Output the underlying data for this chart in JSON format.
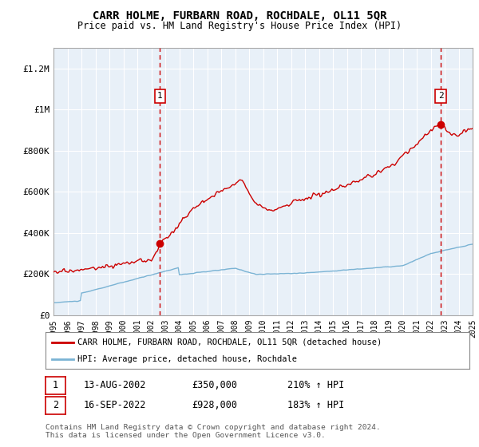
{
  "title": "CARR HOLME, FURBARN ROAD, ROCHDALE, OL11 5QR",
  "subtitle": "Price paid vs. HM Land Registry's House Price Index (HPI)",
  "background_color": "#e8f0f8",
  "plot_bg_color": "#e8f0f8",
  "ylim": [
    0,
    1300000
  ],
  "yticks": [
    0,
    200000,
    400000,
    600000,
    800000,
    1000000,
    1200000
  ],
  "ytick_labels": [
    "£0",
    "£200K",
    "£400K",
    "£600K",
    "£800K",
    "£1M",
    "£1.2M"
  ],
  "year_start": 1995,
  "year_end": 2025,
  "hpi_color": "#7ab3d4",
  "price_color": "#cc0000",
  "marker1_year": 2002.617,
  "marker1_price": 350000,
  "marker2_year": 2022.708,
  "marker2_price": 928000,
  "legend_label1": "CARR HOLME, FURBARN ROAD, ROCHDALE, OL11 5QR (detached house)",
  "legend_label2": "HPI: Average price, detached house, Rochdale",
  "table_row1": [
    "1",
    "13-AUG-2002",
    "£350,000",
    "210% ↑ HPI"
  ],
  "table_row2": [
    "2",
    "16-SEP-2022",
    "£928,000",
    "183% ↑ HPI"
  ],
  "footer": "Contains HM Land Registry data © Crown copyright and database right 2024.\nThis data is licensed under the Open Government Licence v3.0.",
  "grid_color": "#ffffff",
  "dashed_line_color": "#cc0000"
}
